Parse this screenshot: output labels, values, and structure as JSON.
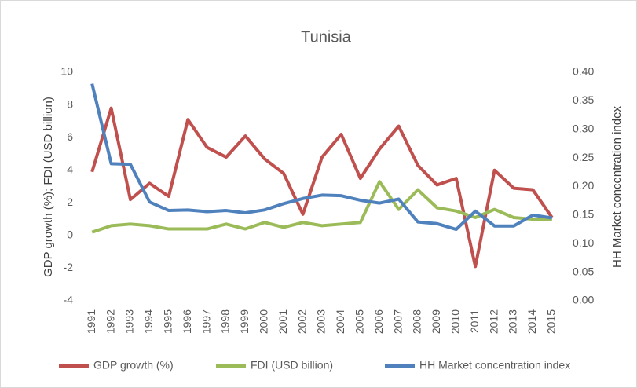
{
  "chart_data": {
    "type": "line",
    "title": "Tunisia",
    "y_label": "GDP growth (%); FDI (USD billion)",
    "y2_label": "HH Market concentration index",
    "categories": [
      "1991",
      "1992",
      "1993",
      "1994",
      "1995",
      "1996",
      "1997",
      "1998",
      "1999",
      "2000",
      "2001",
      "2002",
      "2003",
      "2004",
      "2005",
      "2006",
      "2007",
      "2008",
      "2009",
      "2010",
      "2011",
      "2012",
      "2013",
      "2014",
      "2015"
    ],
    "ylim": [
      -4,
      10
    ],
    "yticks": [
      -4,
      -2,
      0,
      2,
      4,
      6,
      8,
      10
    ],
    "y2lim": [
      0,
      0.4
    ],
    "y2ticks": [
      {
        "value": 0,
        "label": "0.00"
      },
      {
        "value": 0.05,
        "label": "0.05"
      },
      {
        "value": 0.1,
        "label": "0.10"
      },
      {
        "value": 0.15,
        "label": "0.15"
      },
      {
        "value": 0.2,
        "label": "0.20"
      },
      {
        "value": 0.25,
        "label": "0.25"
      },
      {
        "value": 0.3,
        "label": "0.30"
      },
      {
        "value": 0.35,
        "label": "0.35"
      },
      {
        "value": 0.4,
        "label": "0.40"
      }
    ],
    "legend": "bottom",
    "series": [
      {
        "name": "GDP growth (%)",
        "color": "#c0504d",
        "values": [
          3.9,
          7.8,
          2.2,
          3.2,
          2.4,
          7.1,
          5.4,
          4.8,
          6.1,
          4.7,
          3.8,
          1.3,
          4.8,
          6.2,
          3.5,
          5.3,
          6.7,
          4.3,
          3.1,
          3.5,
          -1.9,
          4.0,
          2.9,
          2.8,
          1.1
        ]
      },
      {
        "name": "FDI (USD billion)",
        "color": "#9bbb59",
        "values": [
          0.2,
          0.6,
          0.7,
          0.6,
          0.4,
          0.4,
          0.4,
          0.7,
          0.4,
          0.8,
          0.5,
          0.8,
          0.6,
          0.7,
          0.8,
          3.3,
          1.6,
          2.8,
          1.7,
          1.5,
          1.1,
          1.6,
          1.1,
          1.0,
          1.0
        ]
      },
      {
        "name": "HH Market concentration index",
        "color": "#4f81bd",
        "axis": "y2",
        "values": [
          0.38,
          0.24,
          0.239,
          0.173,
          0.158,
          0.159,
          0.156,
          0.158,
          0.154,
          0.159,
          0.17,
          0.179,
          0.185,
          0.184,
          0.176,
          0.171,
          0.178,
          0.138,
          0.135,
          0.125,
          0.157,
          0.131,
          0.131,
          0.15,
          0.145
        ]
      }
    ]
  }
}
